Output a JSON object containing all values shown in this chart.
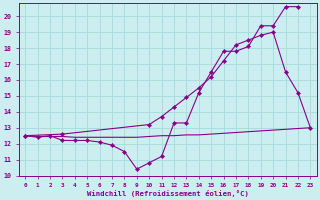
{
  "xlabel": "Windchill (Refroidissement éolien,°C)",
  "bg_color": "#cceef0",
  "grid_color": "#aadddf",
  "line_color": "#880088",
  "xlim": [
    -0.5,
    23.5
  ],
  "ylim": [
    10,
    20.8
  ],
  "xticks": [
    0,
    1,
    2,
    3,
    4,
    5,
    6,
    7,
    8,
    9,
    10,
    11,
    12,
    13,
    14,
    15,
    16,
    17,
    18,
    19,
    20,
    21,
    22,
    23
  ],
  "yticks": [
    10,
    11,
    12,
    13,
    14,
    15,
    16,
    17,
    18,
    19,
    20
  ],
  "curve1_x": [
    0,
    1,
    2,
    3,
    4,
    5,
    6,
    7,
    8,
    9,
    10,
    11,
    12,
    13,
    14,
    15,
    16,
    17,
    18,
    19,
    20,
    21,
    22
  ],
  "curve1_y": [
    12.5,
    12.4,
    12.5,
    12.2,
    12.2,
    12.2,
    12.1,
    11.9,
    11.5,
    10.4,
    10.8,
    11.2,
    13.3,
    13.3,
    15.2,
    16.5,
    17.8,
    17.8,
    18.1,
    19.4,
    19.4,
    20.6,
    20.6
  ],
  "curve2_x": [
    0,
    1,
    2,
    3,
    4,
    5,
    6,
    7,
    8,
    9,
    10,
    11,
    12,
    13,
    14,
    15,
    16,
    17,
    18,
    19,
    20,
    21,
    22,
    23
  ],
  "curve2_y": [
    12.5,
    12.45,
    12.45,
    12.45,
    12.4,
    12.4,
    12.4,
    12.4,
    12.4,
    12.4,
    12.45,
    12.5,
    12.5,
    12.55,
    12.55,
    12.6,
    12.65,
    12.7,
    12.75,
    12.8,
    12.85,
    12.9,
    12.95,
    13.0
  ],
  "curve3_x": [
    0,
    3,
    10,
    11,
    12,
    13,
    14,
    15,
    16,
    17,
    18,
    19,
    20,
    21,
    22,
    23
  ],
  "curve3_y": [
    12.5,
    12.6,
    13.2,
    13.7,
    14.3,
    14.9,
    15.5,
    16.2,
    17.2,
    18.2,
    18.5,
    18.8,
    19.0,
    16.5,
    15.2,
    13.0
  ],
  "curve3_has_marker_end": true
}
